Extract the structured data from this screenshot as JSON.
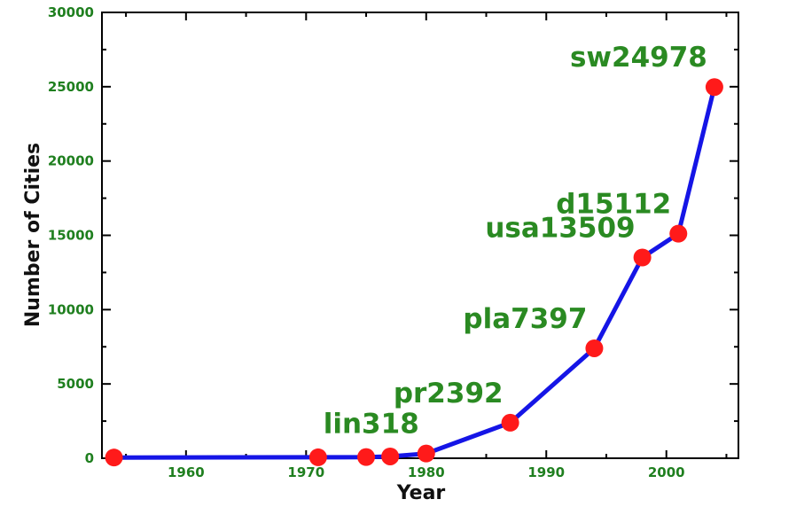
{
  "chart_data": {
    "type": "line",
    "xlabel": "Year",
    "ylabel": "Number of Cities",
    "xlim": [
      1953,
      2006
    ],
    "ylim": [
      0,
      30000
    ],
    "xticks": [
      1960,
      1970,
      1980,
      1990,
      2000
    ],
    "yticks": [
      0,
      5000,
      10000,
      15000,
      20000,
      25000,
      30000
    ],
    "grid": false,
    "series": [
      {
        "x": [
          1954,
          1971,
          1975,
          1977,
          1980,
          1987,
          1994,
          1998,
          2001,
          2004
        ],
        "y": [
          49,
          64,
          80,
          120,
          318,
          2392,
          7397,
          13509,
          15112,
          24978
        ]
      }
    ],
    "annotations": [
      {
        "text": "lin318",
        "x": 1980,
        "y": 318
      },
      {
        "text": "pr2392",
        "x": 1987,
        "y": 2392
      },
      {
        "text": "pla7397",
        "x": 1994,
        "y": 7397
      },
      {
        "text": "usa13509",
        "x": 1998,
        "y": 13509
      },
      {
        "text": "d15112",
        "x": 2001,
        "y": 15112
      },
      {
        "text": "sw24978",
        "x": 2004,
        "y": 24978
      }
    ],
    "colors": {
      "line": "#1515e6",
      "marker": "#ff1a1a",
      "tick_labels": "#1f7f1f",
      "data_labels": "#2a8a22",
      "axis_title": "#111111"
    }
  }
}
